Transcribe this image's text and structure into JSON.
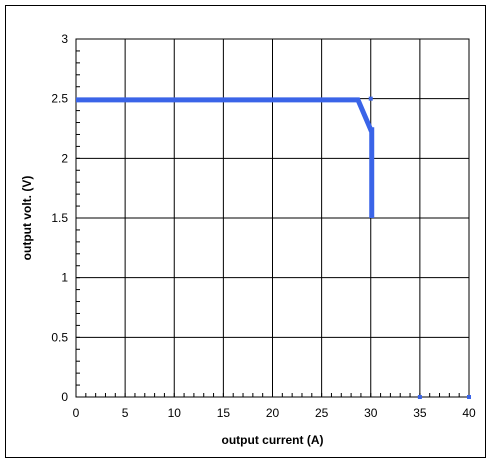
{
  "chart_data": {
    "type": "line",
    "xlabel": "output current (A)",
    "ylabel": "output volt. (V)",
    "xlim": [
      0,
      40
    ],
    "ylim": [
      0,
      3
    ],
    "x_ticks": [
      0,
      5,
      10,
      15,
      20,
      25,
      30,
      35,
      40
    ],
    "y_ticks": [
      0,
      0.5,
      1,
      1.5,
      2,
      2.5,
      3
    ],
    "x_tick_labels": [
      "0",
      "5",
      "10",
      "15",
      "20",
      "25",
      "30",
      "35",
      "40"
    ],
    "y_tick_labels": [
      "0",
      "0.5",
      "1",
      "1.5",
      "2",
      "2.5",
      "3"
    ],
    "grid": true,
    "series": [
      {
        "color": "#3a64e8",
        "x": [
          0,
          28.7,
          30.0,
          30.1,
          30.1
        ],
        "y": [
          2.49,
          2.49,
          2.24,
          2.24,
          1.5
        ]
      }
    ],
    "markers": {
      "color": "#3a64e8",
      "x": [
        30,
        35,
        40
      ],
      "y": [
        2.5,
        0,
        0
      ]
    }
  }
}
